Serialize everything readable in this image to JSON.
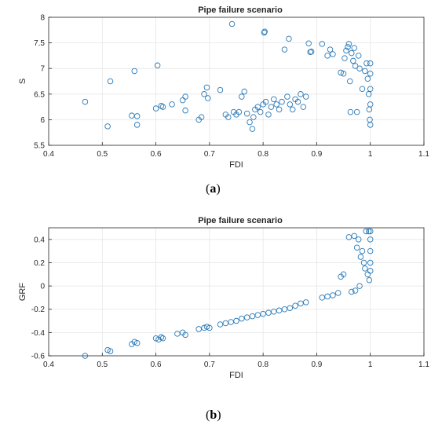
{
  "chart_data": [
    {
      "type": "scatter",
      "title": "Pipe failure scenario",
      "xlabel": "FDI",
      "ylabel": "S",
      "xlim": [
        0.4,
        1.1
      ],
      "ylim": [
        5.5,
        8
      ],
      "xticks": [
        "0.4",
        "0.5",
        "0.6",
        "0.7",
        "0.8",
        "0.9",
        "1",
        "1.1"
      ],
      "yticks": [
        "5.5",
        "6",
        "6.5",
        "7",
        "7.5",
        "8"
      ],
      "xtick_values": [
        0.4,
        0.5,
        0.6,
        0.7,
        0.8,
        0.9,
        1.0,
        1.1
      ],
      "ytick_values": [
        5.5,
        6.0,
        6.5,
        7.0,
        7.5,
        8.0
      ],
      "grid": true,
      "marker": "open-circle",
      "color": "#2a7ab8",
      "points": [
        [
          0.468,
          6.35
        ],
        [
          0.51,
          5.87
        ],
        [
          0.515,
          6.75
        ],
        [
          0.555,
          6.08
        ],
        [
          0.56,
          6.95
        ],
        [
          0.565,
          6.07
        ],
        [
          0.565,
          5.9
        ],
        [
          0.6,
          6.22
        ],
        [
          0.603,
          7.06
        ],
        [
          0.61,
          6.27
        ],
        [
          0.613,
          6.25
        ],
        [
          0.63,
          6.3
        ],
        [
          0.65,
          6.38
        ],
        [
          0.655,
          6.45
        ],
        [
          0.655,
          6.18
        ],
        [
          0.68,
          6.0
        ],
        [
          0.685,
          6.05
        ],
        [
          0.69,
          6.5
        ],
        [
          0.695,
          6.63
        ],
        [
          0.697,
          6.42
        ],
        [
          0.72,
          6.58
        ],
        [
          0.73,
          6.1
        ],
        [
          0.735,
          6.05
        ],
        [
          0.742,
          7.87
        ],
        [
          0.745,
          6.15
        ],
        [
          0.75,
          6.1
        ],
        [
          0.755,
          6.15
        ],
        [
          0.76,
          6.45
        ],
        [
          0.765,
          6.55
        ],
        [
          0.77,
          6.12
        ],
        [
          0.775,
          5.95
        ],
        [
          0.78,
          5.82
        ],
        [
          0.782,
          6.05
        ],
        [
          0.785,
          6.2
        ],
        [
          0.79,
          6.25
        ],
        [
          0.795,
          6.15
        ],
        [
          0.8,
          6.3
        ],
        [
          0.802,
          7.7
        ],
        [
          0.803,
          7.72
        ],
        [
          0.805,
          6.35
        ],
        [
          0.81,
          6.1
        ],
        [
          0.815,
          6.25
        ],
        [
          0.82,
          6.4
        ],
        [
          0.825,
          6.3
        ],
        [
          0.83,
          6.2
        ],
        [
          0.835,
          6.35
        ],
        [
          0.84,
          7.37
        ],
        [
          0.845,
          6.45
        ],
        [
          0.848,
          7.58
        ],
        [
          0.85,
          6.3
        ],
        [
          0.855,
          6.2
        ],
        [
          0.86,
          6.4
        ],
        [
          0.865,
          6.35
        ],
        [
          0.87,
          6.5
        ],
        [
          0.875,
          6.25
        ],
        [
          0.88,
          6.45
        ],
        [
          0.885,
          7.49
        ],
        [
          0.888,
          7.32
        ],
        [
          0.89,
          7.33
        ],
        [
          0.91,
          7.48
        ],
        [
          0.92,
          7.25
        ],
        [
          0.925,
          7.37
        ],
        [
          0.93,
          7.28
        ],
        [
          0.945,
          6.92
        ],
        [
          0.95,
          6.9
        ],
        [
          0.952,
          7.2
        ],
        [
          0.955,
          7.35
        ],
        [
          0.958,
          7.42
        ],
        [
          0.96,
          7.48
        ],
        [
          0.962,
          6.75
        ],
        [
          0.963,
          6.15
        ],
        [
          0.965,
          7.3
        ],
        [
          0.968,
          7.15
        ],
        [
          0.97,
          7.4
        ],
        [
          0.972,
          7.05
        ],
        [
          0.975,
          6.15
        ],
        [
          0.978,
          7.25
        ],
        [
          0.98,
          7.0
        ],
        [
          0.985,
          6.6
        ],
        [
          0.99,
          6.95
        ],
        [
          0.993,
          7.1
        ],
        [
          0.995,
          6.8
        ],
        [
          0.997,
          6.5
        ],
        [
          0.998,
          6.2
        ],
        [
          0.999,
          6.0
        ],
        [
          1.0,
          5.9
        ],
        [
          1.0,
          6.3
        ],
        [
          1.0,
          6.6
        ],
        [
          1.0,
          6.9
        ],
        [
          1.0,
          7.1
        ]
      ]
    },
    {
      "type": "scatter",
      "title": "Pipe failure scenario",
      "xlabel": "FDI",
      "ylabel": "GRF",
      "xlim": [
        0.4,
        1.1
      ],
      "ylim": [
        -0.6,
        0.5
      ],
      "xticks": [
        "0.4",
        "0.5",
        "0.6",
        "0.7",
        "0.8",
        "0.9",
        "1",
        "1.1"
      ],
      "yticks": [
        "-0.6",
        "-0.4",
        "-0.2",
        "0",
        "0.2",
        "0.4"
      ],
      "xtick_values": [
        0.4,
        0.5,
        0.6,
        0.7,
        0.8,
        0.9,
        1.0,
        1.1
      ],
      "ytick_values": [
        -0.6,
        -0.4,
        -0.2,
        0.0,
        0.2,
        0.4
      ],
      "grid": true,
      "marker": "open-circle",
      "color": "#2a7ab8",
      "points": [
        [
          0.468,
          -0.6
        ],
        [
          0.51,
          -0.55
        ],
        [
          0.515,
          -0.56
        ],
        [
          0.555,
          -0.5
        ],
        [
          0.56,
          -0.48
        ],
        [
          0.565,
          -0.49
        ],
        [
          0.6,
          -0.45
        ],
        [
          0.605,
          -0.46
        ],
        [
          0.61,
          -0.44
        ],
        [
          0.613,
          -0.45
        ],
        [
          0.64,
          -0.41
        ],
        [
          0.65,
          -0.4
        ],
        [
          0.655,
          -0.42
        ],
        [
          0.68,
          -0.37
        ],
        [
          0.69,
          -0.36
        ],
        [
          0.695,
          -0.35
        ],
        [
          0.7,
          -0.36
        ],
        [
          0.72,
          -0.33
        ],
        [
          0.73,
          -0.32
        ],
        [
          0.74,
          -0.31
        ],
        [
          0.75,
          -0.3
        ],
        [
          0.76,
          -0.28
        ],
        [
          0.77,
          -0.27
        ],
        [
          0.78,
          -0.26
        ],
        [
          0.79,
          -0.25
        ],
        [
          0.8,
          -0.24
        ],
        [
          0.81,
          -0.23
        ],
        [
          0.82,
          -0.22
        ],
        [
          0.83,
          -0.21
        ],
        [
          0.84,
          -0.2
        ],
        [
          0.85,
          -0.19
        ],
        [
          0.86,
          -0.17
        ],
        [
          0.87,
          -0.15
        ],
        [
          0.88,
          -0.14
        ],
        [
          0.91,
          -0.1
        ],
        [
          0.92,
          -0.09
        ],
        [
          0.93,
          -0.08
        ],
        [
          0.94,
          -0.06
        ],
        [
          0.945,
          0.08
        ],
        [
          0.95,
          0.1
        ],
        [
          0.96,
          0.42
        ],
        [
          0.965,
          -0.05
        ],
        [
          0.97,
          0.43
        ],
        [
          0.972,
          -0.04
        ],
        [
          0.975,
          0.33
        ],
        [
          0.978,
          0.4
        ],
        [
          0.98,
          0.0
        ],
        [
          0.982,
          0.25
        ],
        [
          0.985,
          0.3
        ],
        [
          0.988,
          0.2
        ],
        [
          0.99,
          0.15
        ],
        [
          0.992,
          0.47
        ],
        [
          0.995,
          0.1
        ],
        [
          0.997,
          0.47
        ],
        [
          0.998,
          0.05
        ],
        [
          1.0,
          0.13
        ],
        [
          1.0,
          0.2
        ],
        [
          1.0,
          0.3
        ],
        [
          1.0,
          0.4
        ],
        [
          1.0,
          0.47
        ]
      ]
    }
  ],
  "captions": [
    {
      "open": "(",
      "label": "a",
      "close": ")"
    },
    {
      "open": "(",
      "label": "b",
      "close": ")"
    }
  ]
}
